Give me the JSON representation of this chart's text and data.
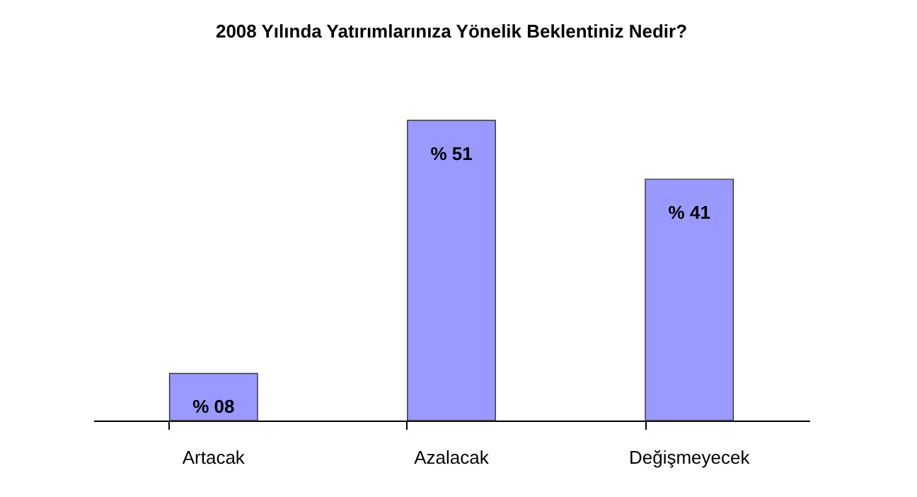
{
  "chart_data": {
    "type": "bar",
    "title": "2008 Yılında Yatırımlarınıza Yönelik Beklentiniz Nedir?",
    "categories": [
      "Artacak",
      "Azalacak",
      "Değişmeyecek"
    ],
    "values": [
      8,
      51,
      41
    ],
    "value_labels": [
      "% 08",
      "% 51",
      "% 41"
    ],
    "color": "#9999ff"
  }
}
